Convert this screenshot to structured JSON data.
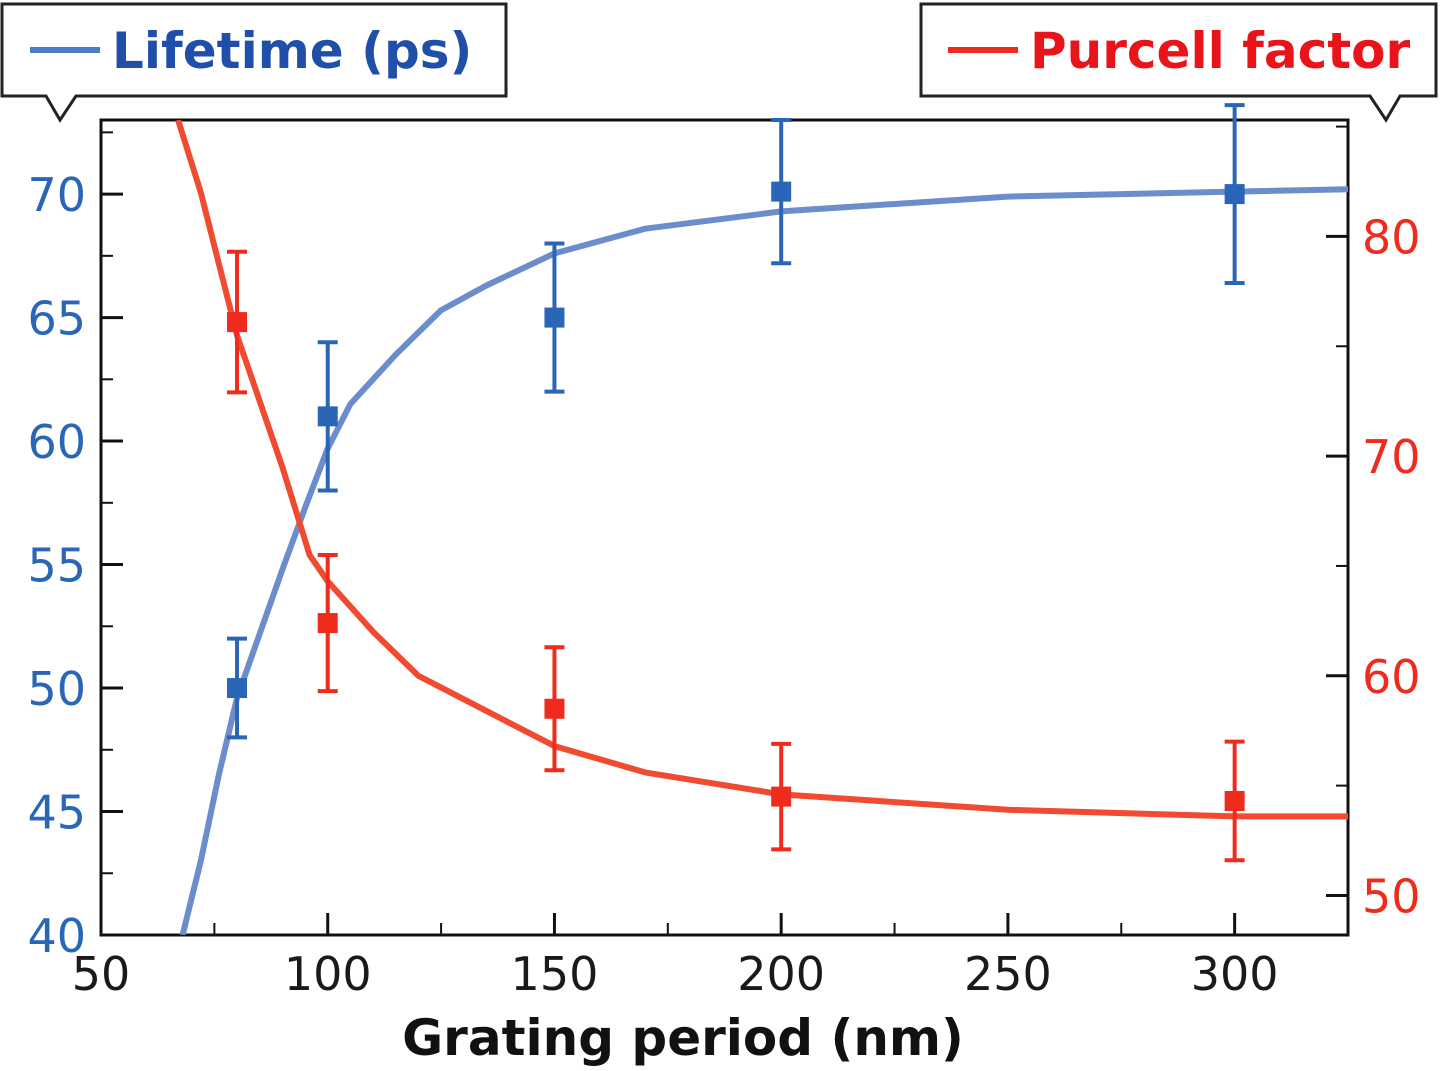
{
  "chart_data": {
    "type": "line",
    "title": "",
    "xlabel": "Grating period (nm)",
    "xlim": [
      50,
      325
    ],
    "xticks": [
      50,
      100,
      150,
      200,
      250,
      300
    ],
    "colors": {
      "lifetime": "#2a66b8",
      "purcell": "#ee2b1d",
      "lifetime_curve": "#6b8dcc",
      "purcell_curve": "#f04a30",
      "axis": "#111111"
    },
    "left_axis": {
      "label": "",
      "ylim": [
        40,
        73
      ],
      "ticks": [
        40,
        45,
        50,
        55,
        60,
        65,
        70
      ]
    },
    "right_axis": {
      "label": "",
      "ylim": [
        48.2,
        85.3
      ],
      "ticks": [
        50,
        60,
        70,
        80
      ]
    },
    "series": [
      {
        "name": "Lifetime (ps)",
        "axis": "left",
        "color": "#2a66b8",
        "fit_x": [
          68,
          72,
          76,
          80,
          85,
          90,
          95,
          100,
          105,
          110,
          115,
          120,
          125,
          135,
          150,
          170,
          200,
          250,
          300,
          325
        ],
        "fit_y": [
          40,
          43,
          46.5,
          49.6,
          52.2,
          54.8,
          57.3,
          59.7,
          61.5,
          62.5,
          63.5,
          64.4,
          65.3,
          66.3,
          67.6,
          68.6,
          69.3,
          69.9,
          70.1,
          70.2
        ],
        "points": [
          {
            "x": 80,
            "y": 50,
            "err": 2
          },
          {
            "x": 100,
            "y": 61,
            "err": 3
          },
          {
            "x": 150,
            "y": 65,
            "err": 3
          },
          {
            "x": 200,
            "y": 70.1,
            "err": 2.9
          },
          {
            "x": 300,
            "y": 70,
            "err": 3.6
          }
        ]
      },
      {
        "name": "Purcell factor",
        "axis": "right",
        "color": "#ee2b1d",
        "fit_x": [
          67,
          72,
          80,
          90,
          96,
          100,
          110,
          120,
          135,
          150,
          170,
          200,
          250,
          300,
          325
        ],
        "fit_y": [
          85.3,
          82.0,
          75.5,
          69.5,
          65.5,
          64.3,
          62.0,
          60.0,
          58.4,
          56.8,
          55.6,
          54.6,
          53.9,
          53.6,
          53.6
        ],
        "points": [
          {
            "x": 80,
            "y": 76.1,
            "err": 3.2
          },
          {
            "x": 100,
            "y": 62.4,
            "err": 3.1
          },
          {
            "x": 150,
            "y": 58.5,
            "err": 2.8
          },
          {
            "x": 200,
            "y": 54.5,
            "err": 2.4
          },
          {
            "x": 300,
            "y": 54.3,
            "err": 2.7
          }
        ]
      }
    ]
  },
  "legend": {
    "lifetime_label": "Lifetime (ps)",
    "purcell_label": "Purcell factor"
  }
}
